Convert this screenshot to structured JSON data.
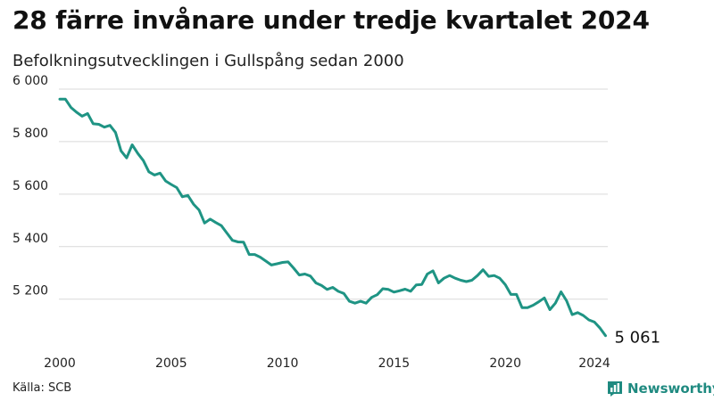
{
  "title": "28 färre invånare under tredje kvartalet 2024",
  "subtitle": "Befolkningsutvecklingen i Gullspång sedan 2000",
  "source": "Källa: SCB",
  "brand": {
    "name": "Newsworthy",
    "icon": "bar-chart-logo-icon",
    "color": "#1f8a80"
  },
  "chart_data": {
    "type": "line",
    "title": "28 färre invånare under tredje kvartalet 2024",
    "subtitle": "Befolkningsutvecklingen i Gullspång sedan 2000",
    "xlabel": "",
    "ylabel": "",
    "x_unit": "year",
    "xlim": [
      2000,
      2024.6
    ],
    "ylim": [
      5060,
      6000
    ],
    "y_ticks": [
      5200,
      5400,
      5600,
      5800,
      6000
    ],
    "y_tick_labels": [
      "5 200",
      "5 400",
      "5 600",
      "5 800",
      "6 000"
    ],
    "x_ticks": [
      2000,
      2005,
      2010,
      2015,
      2020,
      2024
    ],
    "x_tick_labels": [
      "2000",
      "2005",
      "2010",
      "2015",
      "2020",
      "2024"
    ],
    "grid": "horizontal",
    "legend": "none",
    "line_color": "#1f9484",
    "end_label": "5 061",
    "series": [
      {
        "x": [
          2000.0,
          2000.25,
          2000.5,
          2000.75,
          2001.0,
          2001.25,
          2001.5,
          2001.75,
          2002.0,
          2002.25,
          2002.5,
          2002.75,
          2003.0,
          2003.25,
          2003.5,
          2003.75,
          2004.0,
          2004.25,
          2004.5,
          2004.75,
          2005.0,
          2005.25,
          2005.5,
          2005.75,
          2006.0,
          2006.25,
          2006.5,
          2006.75,
          2007.0,
          2007.25,
          2007.5,
          2007.75,
          2008.0,
          2008.25,
          2008.5,
          2008.75,
          2009.0,
          2009.25,
          2009.5,
          2009.75,
          2010.0,
          2010.25,
          2010.5,
          2010.75,
          2011.0,
          2011.25,
          2011.5,
          2011.75,
          2012.0,
          2012.25,
          2012.5,
          2012.75,
          2013.0,
          2013.25,
          2013.5,
          2013.75,
          2014.0,
          2014.25,
          2014.5,
          2014.75,
          2015.0,
          2015.25,
          2015.5,
          2015.75,
          2016.0,
          2016.25,
          2016.5,
          2016.75,
          2017.0,
          2017.25,
          2017.5,
          2017.75,
          2018.0,
          2018.25,
          2018.5,
          2018.75,
          2019.0,
          2019.25,
          2019.5,
          2019.75,
          2020.0,
          2020.25,
          2020.5,
          2020.75,
          2021.0,
          2021.25,
          2021.5,
          2021.75,
          2022.0,
          2022.25,
          2022.5,
          2022.75,
          2023.0,
          2023.25,
          2023.5,
          2023.75,
          2024.0,
          2024.25,
          2024.5
        ],
        "y": [
          5962,
          5962,
          5930,
          5912,
          5897,
          5907,
          5868,
          5866,
          5855,
          5862,
          5835,
          5765,
          5738,
          5788,
          5755,
          5728,
          5685,
          5673,
          5680,
          5650,
          5637,
          5625,
          5590,
          5595,
          5562,
          5540,
          5490,
          5505,
          5492,
          5480,
          5452,
          5424,
          5418,
          5417,
          5370,
          5370,
          5360,
          5345,
          5330,
          5335,
          5340,
          5342,
          5318,
          5292,
          5296,
          5288,
          5262,
          5252,
          5237,
          5245,
          5230,
          5222,
          5192,
          5185,
          5192,
          5185,
          5207,
          5217,
          5240,
          5237,
          5227,
          5232,
          5238,
          5230,
          5254,
          5256,
          5296,
          5308,
          5262,
          5280,
          5290,
          5280,
          5272,
          5267,
          5272,
          5290,
          5312,
          5287,
          5290,
          5280,
          5255,
          5218,
          5218,
          5168,
          5168,
          5177,
          5190,
          5205,
          5160,
          5185,
          5228,
          5194,
          5141,
          5149,
          5138,
          5121,
          5113,
          5090,
          5061
        ]
      }
    ]
  }
}
